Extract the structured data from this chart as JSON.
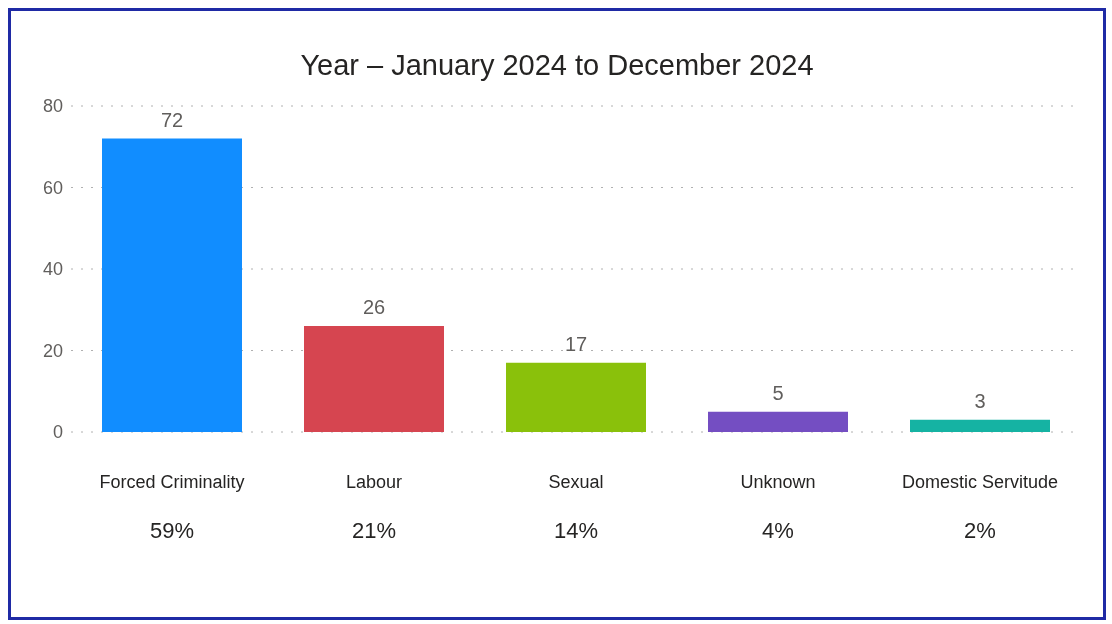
{
  "chart_data": {
    "type": "bar",
    "title": "Year – January 2024 to December 2024",
    "categories": [
      "Forced Criminality",
      "Labour",
      "Sexual",
      "Unknown",
      "Domestic Servitude"
    ],
    "values": [
      72,
      26,
      17,
      5,
      3
    ],
    "colors": [
      "#118dff",
      "#d64550",
      "#8ac10b",
      "#744ec2",
      "#15b3a3"
    ],
    "ylim": [
      0,
      80
    ],
    "yticks": [
      0,
      20,
      40,
      60,
      80
    ],
    "grid": "y",
    "data_labels": true,
    "legend": false,
    "annotations": [
      "59%",
      "21%",
      "14%",
      "4%",
      "2%"
    ]
  }
}
